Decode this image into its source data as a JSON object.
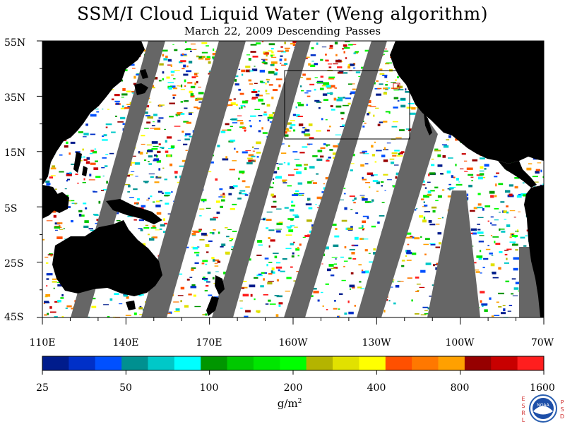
{
  "title": "SSM/I Cloud Liquid Water (Weng algorithm)",
  "subtitle": "March 22, 2009  Descending Passes",
  "map": {
    "projection": "cylindrical",
    "lat_range": [
      "45S",
      "55N"
    ],
    "lon_range": [
      "110E",
      "70W"
    ],
    "lat_labels": [
      "55N",
      "35N",
      "15N",
      "5S",
      "25S",
      "45S"
    ],
    "lon_labels": [
      "110E",
      "140E",
      "170E",
      "160W",
      "130W",
      "100W",
      "70W"
    ],
    "colors": {
      "land": "#000000",
      "no_data_swath_gap": "#666666",
      "clear": "#ffffff",
      "highlight_box": "#000000",
      "small_box": "#cc2222"
    }
  },
  "colorbar": {
    "colors": [
      "#001c8c",
      "#0030c8",
      "#0050ff",
      "#009090",
      "#00c8c8",
      "#00ffff",
      "#009600",
      "#00c800",
      "#00e600",
      "#00ff00",
      "#b4b400",
      "#e1e100",
      "#ffff00",
      "#ff5000",
      "#ff7800",
      "#ffa000",
      "#960000",
      "#c80000",
      "#ff1e1e"
    ],
    "tick_labels": [
      "25",
      "50",
      "100",
      "200",
      "400",
      "800",
      "1600"
    ],
    "units_main": "g/m",
    "units_sup": "2"
  },
  "logo": {
    "center_text": "NOAA",
    "left_text": [
      "E",
      "S",
      "R",
      "L"
    ],
    "right_text": [
      "P",
      "S",
      "D"
    ]
  }
}
